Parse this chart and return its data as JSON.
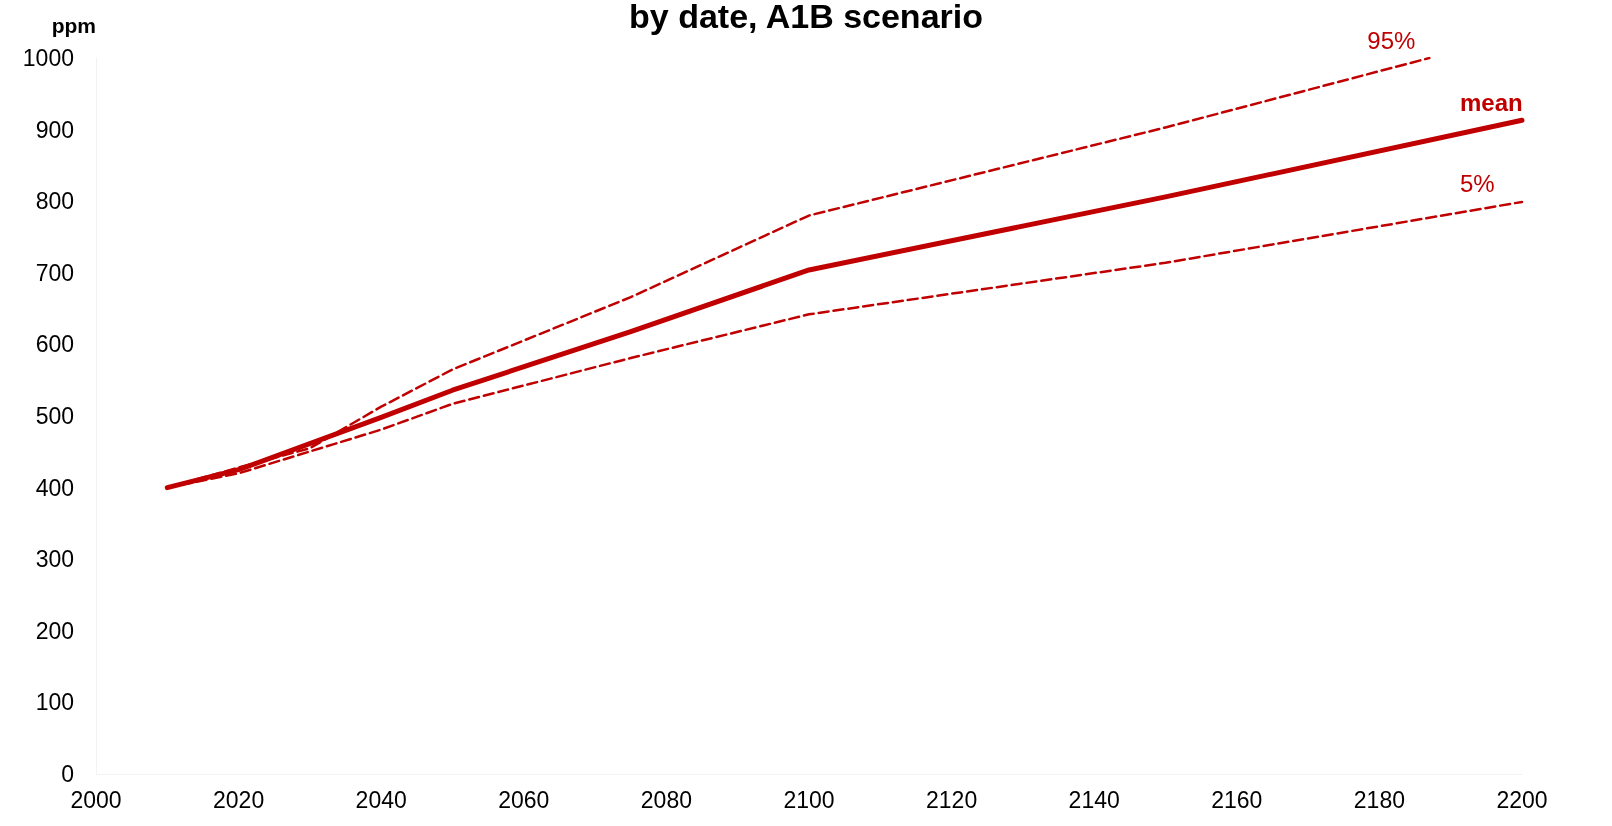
{
  "chart_data": {
    "type": "line",
    "title": "by date, A1B scenario",
    "ylabel": "ppm",
    "xlim": [
      2000,
      2200
    ],
    "xticks": [
      2000,
      2020,
      2040,
      2060,
      2080,
      2100,
      2120,
      2140,
      2160,
      2180,
      2200
    ],
    "ylim": [
      0,
      1000
    ],
    "yticks": [
      0,
      100,
      200,
      300,
      400,
      500,
      600,
      700,
      800,
      900,
      1000
    ],
    "grid": false,
    "legend": false,
    "marker": "none",
    "series": [
      {
        "name": "95%",
        "color": "#c00000",
        "line_style": "dashed",
        "x": [
          2010,
          2020,
          2030,
          2040,
          2050,
          2075,
          2100,
          2150,
          2187
        ],
        "values": [
          400,
          428,
          455,
          513,
          565,
          666,
          780,
          903,
          1000
        ]
      },
      {
        "name": "mean",
        "color": "#c00000",
        "line_style": "solid",
        "x": [
          2010,
          2020,
          2040,
          2050,
          2075,
          2100,
          2150,
          2200
        ],
        "values": [
          400,
          425,
          498,
          536,
          618,
          704,
          806,
          913
        ]
      },
      {
        "name": "5%",
        "color": "#c00000",
        "line_style": "dashed",
        "x": [
          2010,
          2020,
          2040,
          2050,
          2075,
          2100,
          2150,
          2200
        ],
        "values": [
          400,
          420,
          481,
          517,
          581,
          642,
          714,
          799
        ]
      }
    ]
  }
}
